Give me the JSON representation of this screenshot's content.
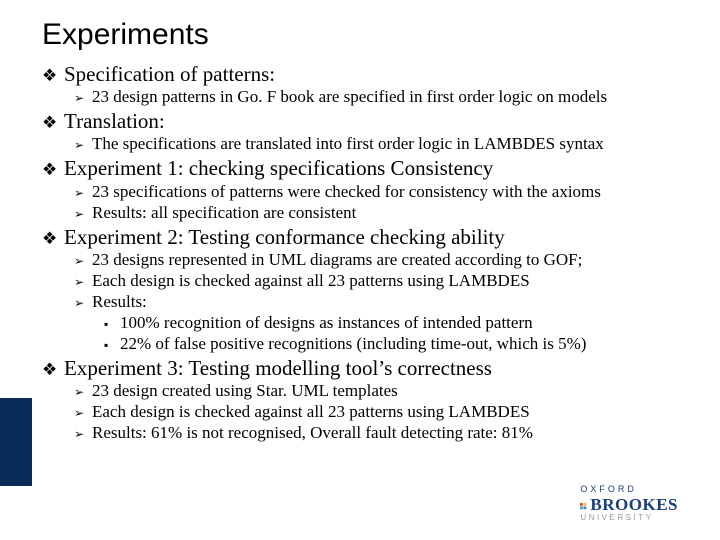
{
  "title": "Experiments",
  "bullets": {
    "l1_glyph": "❖",
    "l2_glyph": "➢",
    "l3_glyph": "▪"
  },
  "items": [
    {
      "text": "Specification of patterns:",
      "children": [
        {
          "text": "23 design patterns in Go. F book are specified in first order logic on models"
        }
      ]
    },
    {
      "text": "Translation:",
      "children": [
        {
          "text": "The specifications are translated into first order logic in LAMBDES syntax"
        }
      ]
    },
    {
      "text": "Experiment 1: checking specifications Consistency",
      "children": [
        {
          "text": "23 specifications of patterns were checked for consistency with the axioms"
        },
        {
          "text": "Results: all specification are consistent"
        }
      ]
    },
    {
      "text": "Experiment 2: Testing conformance checking ability",
      "children": [
        {
          "text": "23 designs represented in UML diagrams are created according to GOF;"
        },
        {
          "text": "Each design is checked against all 23 patterns using LAMBDES"
        },
        {
          "text": "Results:",
          "children": [
            {
              "text": "100% recognition of designs as instances of intended pattern"
            },
            {
              "text": "22% of false positive recognitions (including time-out, which is 5%)"
            }
          ]
        }
      ]
    },
    {
      "text": "Experiment 3: Testing modelling tool’s correctness",
      "children": [
        {
          "text": "23 design created using Star. UML templates"
        },
        {
          "text": "Each design is checked against all 23 patterns using LAMBDES"
        },
        {
          "text": "Results: 61% is not recognised, Overall fault detecting rate: 81%"
        }
      ]
    }
  ],
  "logo": {
    "top": "OXFORD",
    "mid": "BROOKES",
    "bot": "UNIVERSITY"
  },
  "colors": {
    "accent_bar": "#0a2b5a",
    "logo_blue": "#1a3e7a",
    "logo_grey": "#9a9a9a"
  }
}
